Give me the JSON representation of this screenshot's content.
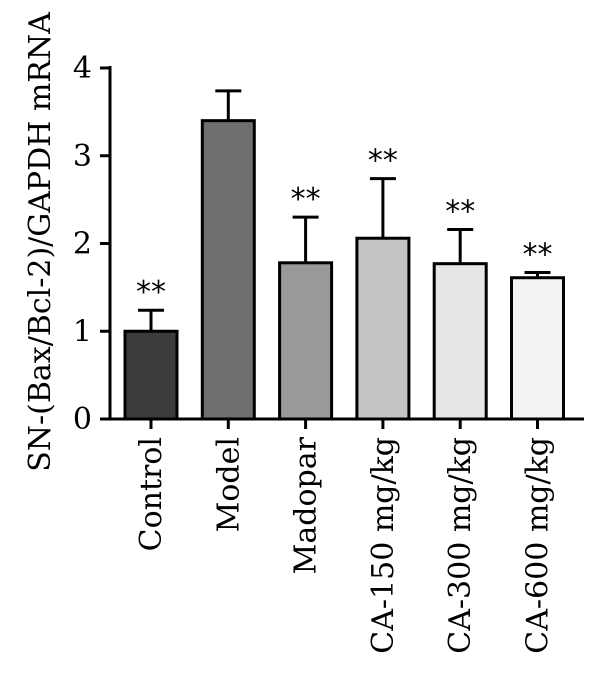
{
  "chart_data": {
    "type": "bar",
    "ylabel": "SN-(Bax/Bcl-2)/GAPDH mRNA",
    "xlabel": "",
    "ylim": [
      0,
      4
    ],
    "yticks": [
      "0",
      "1",
      "2",
      "3",
      "4"
    ],
    "categories": [
      "Control",
      "Model",
      "Madopar",
      "CA-150 mg/kg",
      "CA-300 mg/kg",
      "CA-600 mg/kg"
    ],
    "values": [
      1.0,
      3.4,
      1.78,
      2.06,
      1.77,
      1.61
    ],
    "errors": [
      0.24,
      0.34,
      0.52,
      0.68,
      0.39,
      0.06
    ],
    "significance": [
      "**",
      "",
      "**",
      "**",
      "**",
      "**"
    ],
    "colors": [
      "#3b3b3b",
      "#6e6e6e",
      "#999999",
      "#c4c4c4",
      "#e6e6e6",
      "#f2f2f2"
    ],
    "grid": false,
    "legend": "none"
  }
}
